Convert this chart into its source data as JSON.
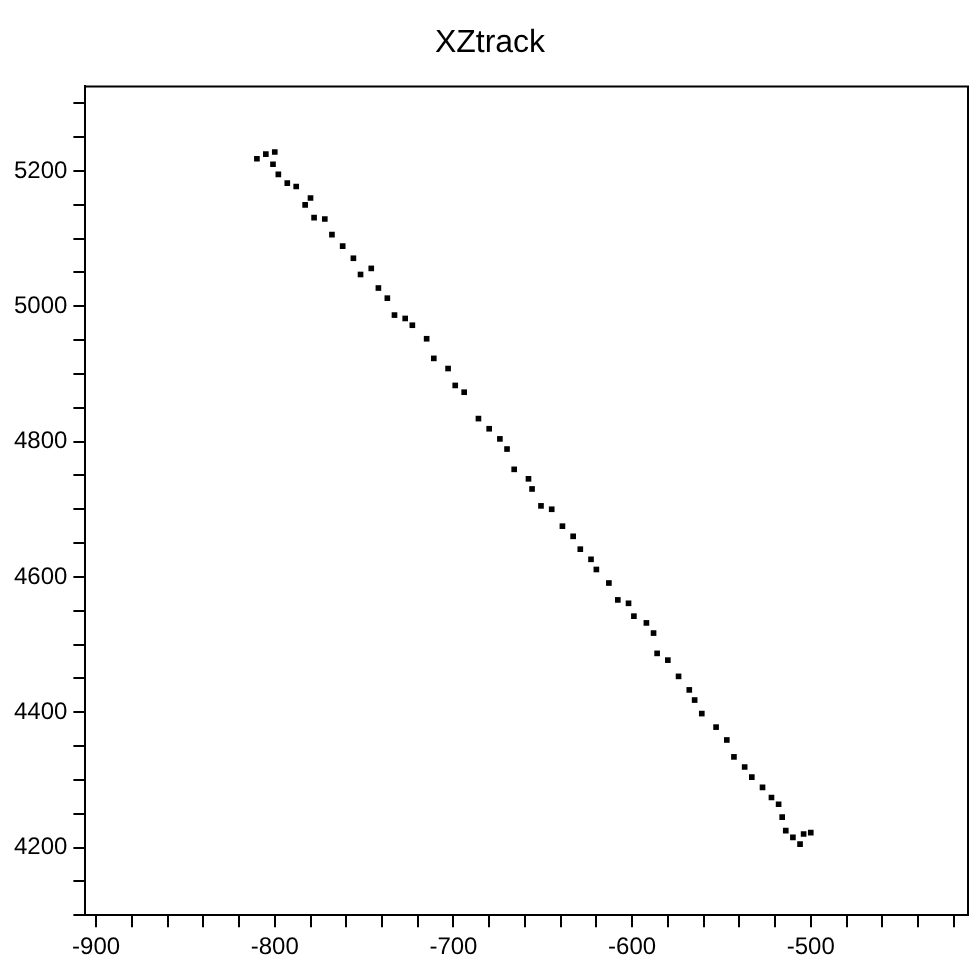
{
  "chart_data": {
    "type": "scatter",
    "title": "XZtrack",
    "marker": "square",
    "grid": false,
    "legend": false,
    "xlim": [
      -906,
      -412
    ],
    "ylim": [
      4100,
      5325
    ],
    "xticks": [
      -900,
      {
        "value": -880,
        "label": null
      },
      {
        "value": -860,
        "label": null
      },
      {
        "value": -840,
        "label": null
      },
      {
        "value": -820,
        "label": null
      },
      -800,
      {
        "value": -780,
        "label": null
      },
      {
        "value": -760,
        "label": null
      },
      {
        "value": -740,
        "label": null
      },
      {
        "value": -720,
        "label": null
      },
      -700,
      {
        "value": -680,
        "label": null
      },
      {
        "value": -660,
        "label": null
      },
      {
        "value": -640,
        "label": null
      },
      {
        "value": -620,
        "label": null
      },
      -600,
      {
        "value": -580,
        "label": null
      },
      {
        "value": -560,
        "label": null
      },
      {
        "value": -540,
        "label": null
      },
      {
        "value": -520,
        "label": null
      },
      -500,
      {
        "value": -480,
        "label": null
      },
      {
        "value": -460,
        "label": null
      },
      {
        "value": -440,
        "label": null
      },
      {
        "value": -420,
        "label": null
      }
    ],
    "yticks": [
      {
        "value": 4100,
        "label": null
      },
      {
        "value": 4150,
        "label": null
      },
      4200,
      {
        "value": 4250,
        "label": null
      },
      {
        "value": 4300,
        "label": null
      },
      {
        "value": 4350,
        "label": null
      },
      4400,
      {
        "value": 4450,
        "label": null
      },
      {
        "value": 4500,
        "label": null
      },
      {
        "value": 4550,
        "label": null
      },
      4600,
      {
        "value": 4650,
        "label": null
      },
      {
        "value": 4700,
        "label": null
      },
      {
        "value": 4750,
        "label": null
      },
      4800,
      {
        "value": 4850,
        "label": null
      },
      {
        "value": 4900,
        "label": null
      },
      {
        "value": 4950,
        "label": null
      },
      5000,
      {
        "value": 5050,
        "label": null
      },
      {
        "value": 5100,
        "label": null
      },
      {
        "value": 5150,
        "label": null
      },
      5200,
      {
        "value": 5250,
        "label": null
      },
      {
        "value": 5300,
        "label": null
      }
    ],
    "series": [
      {
        "color": "#000000",
        "x": [
          -810,
          -805,
          -800,
          -801,
          -798,
          -793,
          -788,
          -783,
          -780,
          -778,
          -772,
          -768,
          -762,
          -756,
          -752,
          -746,
          -742,
          -737,
          -733,
          -727,
          -723,
          -715,
          -711,
          -703,
          -699,
          -694,
          -686,
          -680,
          -674,
          -670,
          -666,
          -658,
          -656,
          -651,
          -645,
          -639,
          -633,
          -629,
          -623,
          -620,
          -613,
          -608,
          -602,
          -599,
          -592,
          -588,
          -586,
          -580,
          -574,
          -568,
          -565,
          -561,
          -553,
          -547,
          -543,
          -537,
          -533,
          -527,
          -522,
          -518,
          -516,
          -514,
          -510,
          -506,
          -504,
          -500
        ],
        "values": [
          5218,
          5225,
          5228,
          5210,
          5195,
          5182,
          5177,
          5150,
          5160,
          5131,
          5129,
          5106,
          5089,
          5071,
          5047,
          5056,
          5027,
          5012,
          4987,
          4982,
          4972,
          4952,
          4923,
          4908,
          4883,
          4873,
          4834,
          4819,
          4804,
          4789,
          4759,
          4745,
          4730,
          4705,
          4700,
          4675,
          4660,
          4641,
          4626,
          4611,
          4591,
          4566,
          4561,
          4542,
          4532,
          4517,
          4487,
          4477,
          4453,
          4433,
          4418,
          4398,
          4378,
          4359,
          4334,
          4319,
          4304,
          4289,
          4274,
          4264,
          4245,
          4225,
          4215,
          4205,
          4220,
          4222
        ]
      }
    ]
  }
}
